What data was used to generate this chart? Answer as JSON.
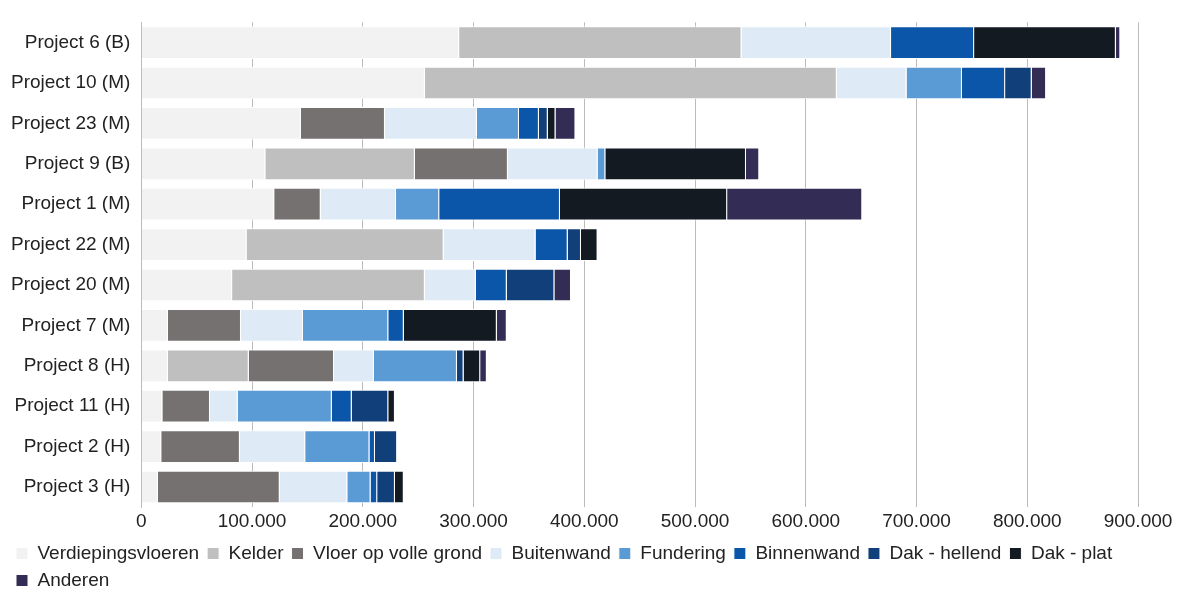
{
  "chart_data": {
    "type": "bar",
    "orientation": "horizontal",
    "stacked": true,
    "grid": "x",
    "legend": "bottom",
    "categories": [
      "Project 6 (B)",
      "Project 10 (M)",
      "Project 23 (M)",
      "Project 9 (B)",
      "Project 1 (M)",
      "Project 22 (M)",
      "Project 20 (M)",
      "Project 7 (M)",
      "Project 8 (H)",
      "Project 11 (H)",
      "Project 2 (H)",
      "Project 3 (H)"
    ],
    "xlim": [
      0,
      900000
    ],
    "xticks": [
      0,
      {
        "value": 100000,
        "label": "100.000"
      },
      {
        "value": 200000,
        "label": "200.000"
      },
      {
        "value": 300000,
        "label": "300.000"
      },
      {
        "value": 400000,
        "label": "400.000"
      },
      {
        "value": 500000,
        "label": "500.000"
      },
      {
        "value": 600000,
        "label": "600.000"
      },
      {
        "value": 700000,
        "label": "700.000"
      },
      {
        "value": 800000,
        "label": "800.000"
      },
      {
        "value": 900000,
        "label": "900.000"
      }
    ],
    "series": [
      {
        "name": "Verdiepingsvloeren",
        "color": "#f2f2f2",
        "values": [
          287000,
          256000,
          144000,
          112000,
          120000,
          95000,
          82000,
          24000,
          24000,
          19000,
          18000,
          15000
        ]
      },
      {
        "name": "Kelder",
        "color": "#bfbfbf",
        "values": [
          255000,
          372000,
          0,
          135000,
          0,
          178000,
          174000,
          0,
          73000,
          0,
          0,
          0
        ]
      },
      {
        "name": "Vloer op volle grond",
        "color": "#767171",
        "values": [
          0,
          0,
          76000,
          84000,
          42000,
          0,
          0,
          66000,
          77000,
          43000,
          71000,
          110000
        ]
      },
      {
        "name": "Buitenwand",
        "color": "#deebf7",
        "values": [
          135000,
          63000,
          83000,
          81000,
          68000,
          83000,
          46000,
          56000,
          36000,
          25000,
          59000,
          61000
        ]
      },
      {
        "name": "Fundering",
        "color": "#5b9bd5",
        "values": [
          0,
          50000,
          38000,
          7000,
          39000,
          0,
          0,
          77000,
          75000,
          85000,
          58000,
          21000
        ]
      },
      {
        "name": "Binnenwand",
        "color": "#0b56a8",
        "values": [
          75000,
          39000,
          18000,
          0,
          109000,
          29000,
          28000,
          14000,
          0,
          18000,
          5000,
          6000
        ]
      },
      {
        "name": "Dak - hellend",
        "color": "#103f7a",
        "values": [
          0,
          24000,
          8000,
          0,
          0,
          12000,
          43000,
          0,
          6000,
          33000,
          20000,
          16000
        ]
      },
      {
        "name": "Dak - plat",
        "color": "#141a22",
        "values": [
          128000,
          0,
          7000,
          127000,
          151000,
          15000,
          0,
          84000,
          15000,
          6000,
          0,
          8000
        ]
      },
      {
        "name": "Anderen",
        "color": "#332c54",
        "values": [
          4000,
          13000,
          18000,
          12000,
          122000,
          0,
          15000,
          9000,
          6000,
          0,
          0,
          0
        ]
      }
    ]
  }
}
